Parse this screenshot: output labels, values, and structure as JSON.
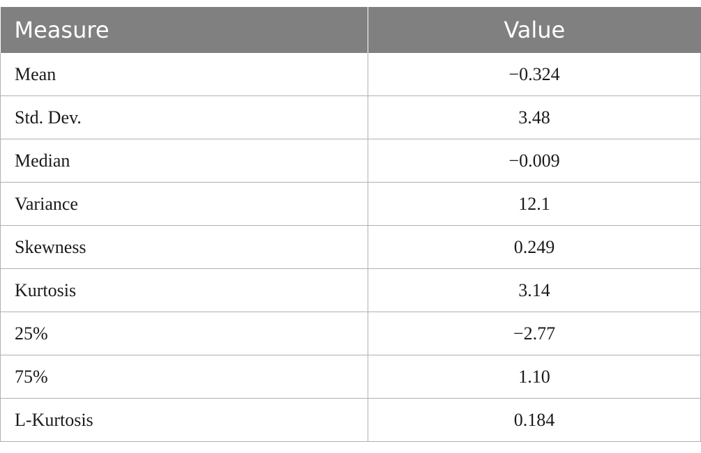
{
  "table": {
    "headers": [
      "Measure",
      "Value"
    ],
    "rows": [
      {
        "measure": "Mean",
        "value": "−0.324"
      },
      {
        "measure": "Std. Dev.",
        "value": "3.48"
      },
      {
        "measure": "Median",
        "value": "−0.009"
      },
      {
        "measure": "Variance",
        "value": "12.1"
      },
      {
        "measure": "Skewness",
        "value": "0.249"
      },
      {
        "measure": "Kurtosis",
        "value": "3.14"
      },
      {
        "measure": "25%",
        "value": "−2.77"
      },
      {
        "measure": "75%",
        "value": "1.10"
      },
      {
        "measure": "L-Kurtosis",
        "value": "0.184"
      }
    ]
  },
  "colors": {
    "header_background": "#808080",
    "header_text": "#ffffff",
    "grid_line": "#b0b0b0"
  }
}
